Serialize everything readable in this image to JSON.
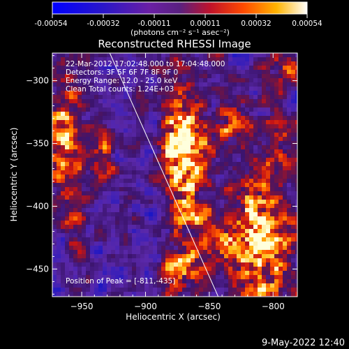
{
  "colorbar": {
    "ticks": [
      "-0.00054",
      "-0.00032",
      "-0.00011",
      "0.00011",
      "0.00032",
      "0.00054"
    ],
    "units_label": "(photons cm⁻² s⁻¹ asec⁻²)",
    "range": [
      -0.00054,
      0.00054
    ]
  },
  "footer": {
    "date": "9-May-2022 12:40"
  },
  "chart_data": {
    "type": "heatmap",
    "title": "Reconstructed RHESSI Image",
    "xlabel": "Heliocentric X (arcsec)",
    "ylabel": "Heliocentric Y (arcsec)",
    "xlim": [
      -973,
      -781
    ],
    "ylim": [
      -472,
      -278
    ],
    "x_ticks": [
      -950,
      -900,
      -850,
      -800
    ],
    "y_ticks": [
      -300,
      -350,
      -400,
      -450
    ],
    "x_tick_labels": [
      "−950",
      "−900",
      "−850",
      "−800"
    ],
    "y_tick_labels": [
      "−300",
      "−350",
      "−400",
      "−450"
    ],
    "annotations": [
      "22-Mar-2012 17:02:48.000 to 17:04:48.000",
      "Detectors: 3F 5F 6F 7F 8F 9F 0",
      "Energy Range: 12.0 - 25.0 keV",
      "Clean    Total counts: 1.24E+03"
    ],
    "peak_label": "Position of Peak = [-811,-435]",
    "peak_position": [
      -811,
      -435
    ],
    "limb_line": [
      [
        -928,
        -278
      ],
      [
        -843,
        -472
      ]
    ],
    "colors": {
      "low": "#1a1aff",
      "mid": "#5a20a0",
      "high": "#ff3000",
      "top": "#ffffe0"
    }
  }
}
